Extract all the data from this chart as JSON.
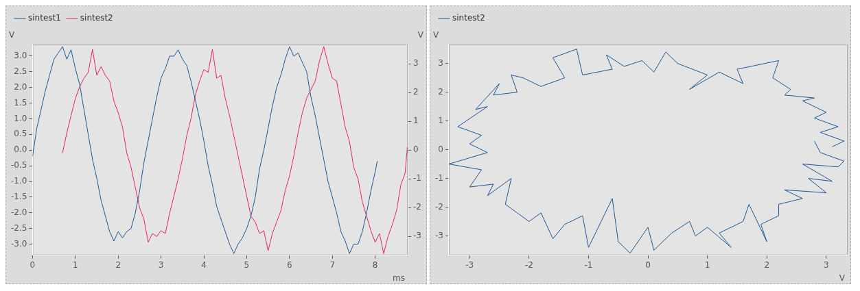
{
  "chart_data": [
    {
      "type": "line",
      "xlabel": "ms",
      "ylabel": "V",
      "y2label": "V",
      "legend": "top left",
      "marker": "none",
      "line_style": "solid",
      "xlim": [
        0,
        8.76
      ],
      "xticks": [
        0,
        1,
        2,
        3,
        4,
        5,
        6,
        7,
        8
      ],
      "ylim": [
        -3.35,
        3.37
      ],
      "yticks": [
        {
          "value": -3,
          "label": "-3.0"
        },
        -2.5,
        {
          "value": -2,
          "label": "-2.0"
        },
        -1.5,
        {
          "value": -1,
          "label": "-1.0"
        },
        -0.5,
        {
          "value": 0,
          "label": "0.0"
        },
        0.5,
        {
          "value": 1,
          "label": "1.0"
        },
        1.5,
        {
          "value": 2,
          "label": "2.0"
        },
        2.5,
        {
          "value": 3,
          "label": "3.0"
        }
      ],
      "y2lim": [
        -3.65,
        3.67
      ],
      "y2ticks": [
        -3,
        -2,
        -1,
        0,
        1,
        2,
        3
      ],
      "series": [
        {
          "name": "sintest1",
          "color": "#1f5591",
          "x": [
            0,
            0.1,
            0.2,
            0.3,
            0.4,
            0.5,
            0.6,
            0.7,
            0.8,
            0.9,
            1.0,
            1.1,
            1.2,
            1.3,
            1.4,
            1.5,
            1.6,
            1.7,
            1.8,
            1.9,
            2.0,
            2.1,
            2.2,
            2.3,
            2.4,
            2.5,
            2.6,
            2.7,
            2.8,
            2.9,
            3.0,
            3.1,
            3.2,
            3.3,
            3.4,
            3.5,
            3.6,
            3.7,
            3.8,
            3.9,
            4.0,
            4.1,
            4.2,
            4.3,
            4.4,
            4.5,
            4.6,
            4.7,
            4.8,
            4.9,
            5.0,
            5.1,
            5.2,
            5.3,
            5.4,
            5.5,
            5.6,
            5.7,
            5.8,
            5.9,
            6.0,
            6.1,
            6.2,
            6.3,
            6.4,
            6.5,
            6.6,
            6.7,
            6.8,
            6.9,
            7.0,
            7.1,
            7.2,
            7.3,
            7.4,
            7.5,
            7.6,
            7.7,
            7.8,
            7.9,
            8.0,
            8.05
          ],
          "values": [
            -0.2,
            0.7,
            1.3,
            1.9,
            2.4,
            2.9,
            3.1,
            3.3,
            2.9,
            3.2,
            2.6,
            2.1,
            1.3,
            0.5,
            -0.3,
            -0.9,
            -1.6,
            -2.1,
            -2.6,
            -2.9,
            -2.6,
            -2.8,
            -2.6,
            -2.5,
            -2.0,
            -1.3,
            -0.4,
            0.3,
            1.0,
            1.7,
            2.3,
            2.6,
            3.0,
            3.0,
            3.2,
            2.9,
            2.7,
            2.2,
            1.6,
            1.0,
            0.3,
            -0.5,
            -1.1,
            -1.8,
            -2.2,
            -2.6,
            -3.0,
            -3.3,
            -3.0,
            -2.8,
            -2.5,
            -2.1,
            -1.5,
            -0.6,
            0.0,
            0.7,
            1.4,
            2.0,
            2.4,
            2.9,
            3.3,
            3.0,
            3.1,
            2.8,
            2.5,
            1.7,
            1.1,
            0.4,
            -0.3,
            -1.0,
            -1.5,
            -2.0,
            -2.6,
            -2.9,
            -3.3,
            -3.0,
            -3.0,
            -2.6,
            -2.0,
            -1.3,
            -0.7,
            -0.35
          ]
        },
        {
          "name": "sintest2",
          "color": "#e0245e",
          "axis": "y2",
          "x": [
            0.7,
            0.8,
            0.9,
            1.0,
            1.1,
            1.2,
            1.3,
            1.4,
            1.5,
            1.6,
            1.7,
            1.8,
            1.9,
            2.0,
            2.1,
            2.2,
            2.3,
            2.4,
            2.5,
            2.6,
            2.7,
            2.8,
            2.9,
            3.0,
            3.1,
            3.2,
            3.3,
            3.4,
            3.5,
            3.6,
            3.7,
            3.8,
            3.9,
            4.0,
            4.1,
            4.2,
            4.3,
            4.4,
            4.5,
            4.6,
            4.7,
            4.8,
            4.9,
            5.0,
            5.1,
            5.2,
            5.3,
            5.4,
            5.5,
            5.6,
            5.7,
            5.8,
            5.9,
            6.0,
            6.1,
            6.2,
            6.3,
            6.4,
            6.5,
            6.6,
            6.7,
            6.8,
            6.9,
            7.0,
            7.1,
            7.2,
            7.3,
            7.4,
            7.5,
            7.6,
            7.7,
            7.8,
            7.9,
            8.0,
            8.1,
            8.2,
            8.3,
            8.4,
            8.5,
            8.6,
            8.7,
            8.75
          ],
          "values": [
            -0.1,
            0.6,
            1.2,
            1.8,
            2.2,
            2.5,
            2.7,
            3.5,
            2.6,
            2.9,
            2.6,
            2.4,
            1.7,
            1.3,
            0.8,
            -0.1,
            -0.6,
            -1.3,
            -2.0,
            -2.4,
            -3.2,
            -2.9,
            -3.0,
            -2.8,
            -2.9,
            -2.2,
            -1.6,
            -1.0,
            -0.3,
            0.5,
            1.1,
            1.9,
            2.4,
            2.8,
            2.7,
            3.5,
            2.5,
            2.6,
            1.8,
            1.2,
            0.5,
            -0.2,
            -0.9,
            -1.6,
            -2.3,
            -2.5,
            -2.9,
            -2.8,
            -3.5,
            -2.9,
            -2.5,
            -2.1,
            -1.4,
            -0.9,
            -0.2,
            0.6,
            1.3,
            1.8,
            2.1,
            2.4,
            3.1,
            3.6,
            3.0,
            2.5,
            2.4,
            1.6,
            0.8,
            0.3,
            -0.6,
            -1.0,
            -1.8,
            -2.3,
            -2.8,
            -3.2,
            -2.9,
            -3.6,
            -3.0,
            -2.6,
            -2.1,
            -1.2,
            -0.8,
            0.1
          ]
        }
      ]
    },
    {
      "type": "line",
      "xlabel": "V",
      "ylabel": "V",
      "legend": "top left",
      "marker": "none",
      "line_style": "solid",
      "xlim": [
        -3.35,
        3.36
      ],
      "xticks": [
        -3,
        -2,
        -1,
        0,
        1,
        2,
        3
      ],
      "ylim": [
        -3.67,
        3.66
      ],
      "yticks": [
        -3,
        -2,
        -1,
        0,
        1,
        2,
        3
      ],
      "series": [
        {
          "name": "sintest2",
          "color": "#1f5591",
          "x": [
            3.1,
            3.3,
            2.9,
            3.2,
            2.8,
            3.0,
            2.6,
            2.8,
            2.3,
            2.4,
            2.1,
            2.2,
            1.5,
            1.6,
            1.2,
            0.7,
            1.0,
            0.5,
            0.3,
            0.1,
            -0.1,
            -0.4,
            -0.7,
            -0.6,
            -1.1,
            -1.2,
            -1.6,
            -1.4,
            -1.8,
            -2.1,
            -2.3,
            -2.2,
            -2.6,
            -2.5,
            -2.9,
            -2.7,
            -3.2,
            -2.8,
            -3.0,
            -2.7,
            -3.35,
            -2.8,
            -3.0,
            -2.6,
            -2.7,
            -2.3,
            -2.4,
            -2.2,
            -2.0,
            -1.8,
            -1.6,
            -1.4,
            -1.1,
            -1.0,
            -0.6,
            -0.5,
            -0.3,
            0.0,
            0.1,
            0.4,
            0.7,
            0.8,
            1.0,
            1.4,
            1.2,
            1.6,
            1.7,
            2.0,
            1.9,
            2.2,
            2.2,
            2.6,
            2.3,
            3.0,
            2.7,
            3.1,
            2.6,
            3.2,
            3.3,
            2.9,
            2.8
          ],
          "values": [
            0.1,
            0.3,
            0.6,
            0.8,
            1.1,
            1.3,
            1.7,
            1.8,
            1.9,
            2.1,
            2.5,
            3.1,
            2.8,
            2.3,
            2.7,
            2.1,
            2.6,
            3.0,
            3.4,
            2.7,
            3.1,
            2.9,
            3.3,
            2.8,
            2.6,
            3.5,
            3.2,
            2.5,
            2.2,
            2.5,
            2.6,
            2.0,
            1.9,
            2.3,
            1.4,
            1.5,
            0.8,
            0.5,
            0.2,
            -0.1,
            -0.5,
            -0.7,
            -1.3,
            -1.2,
            -1.6,
            -1.0,
            -1.9,
            -2.2,
            -2.5,
            -2.2,
            -3.1,
            -2.6,
            -2.3,
            -3.4,
            -1.7,
            -3.2,
            -3.6,
            -2.7,
            -3.5,
            -2.9,
            -2.5,
            -3.0,
            -2.7,
            -3.4,
            -2.9,
            -2.5,
            -1.9,
            -3.2,
            -2.6,
            -2.3,
            -1.9,
            -1.7,
            -1.4,
            -1.5,
            -1.0,
            -1.1,
            -0.5,
            -0.6,
            -0.4,
            -0.1,
            0.3
          ]
        }
      ]
    }
  ]
}
